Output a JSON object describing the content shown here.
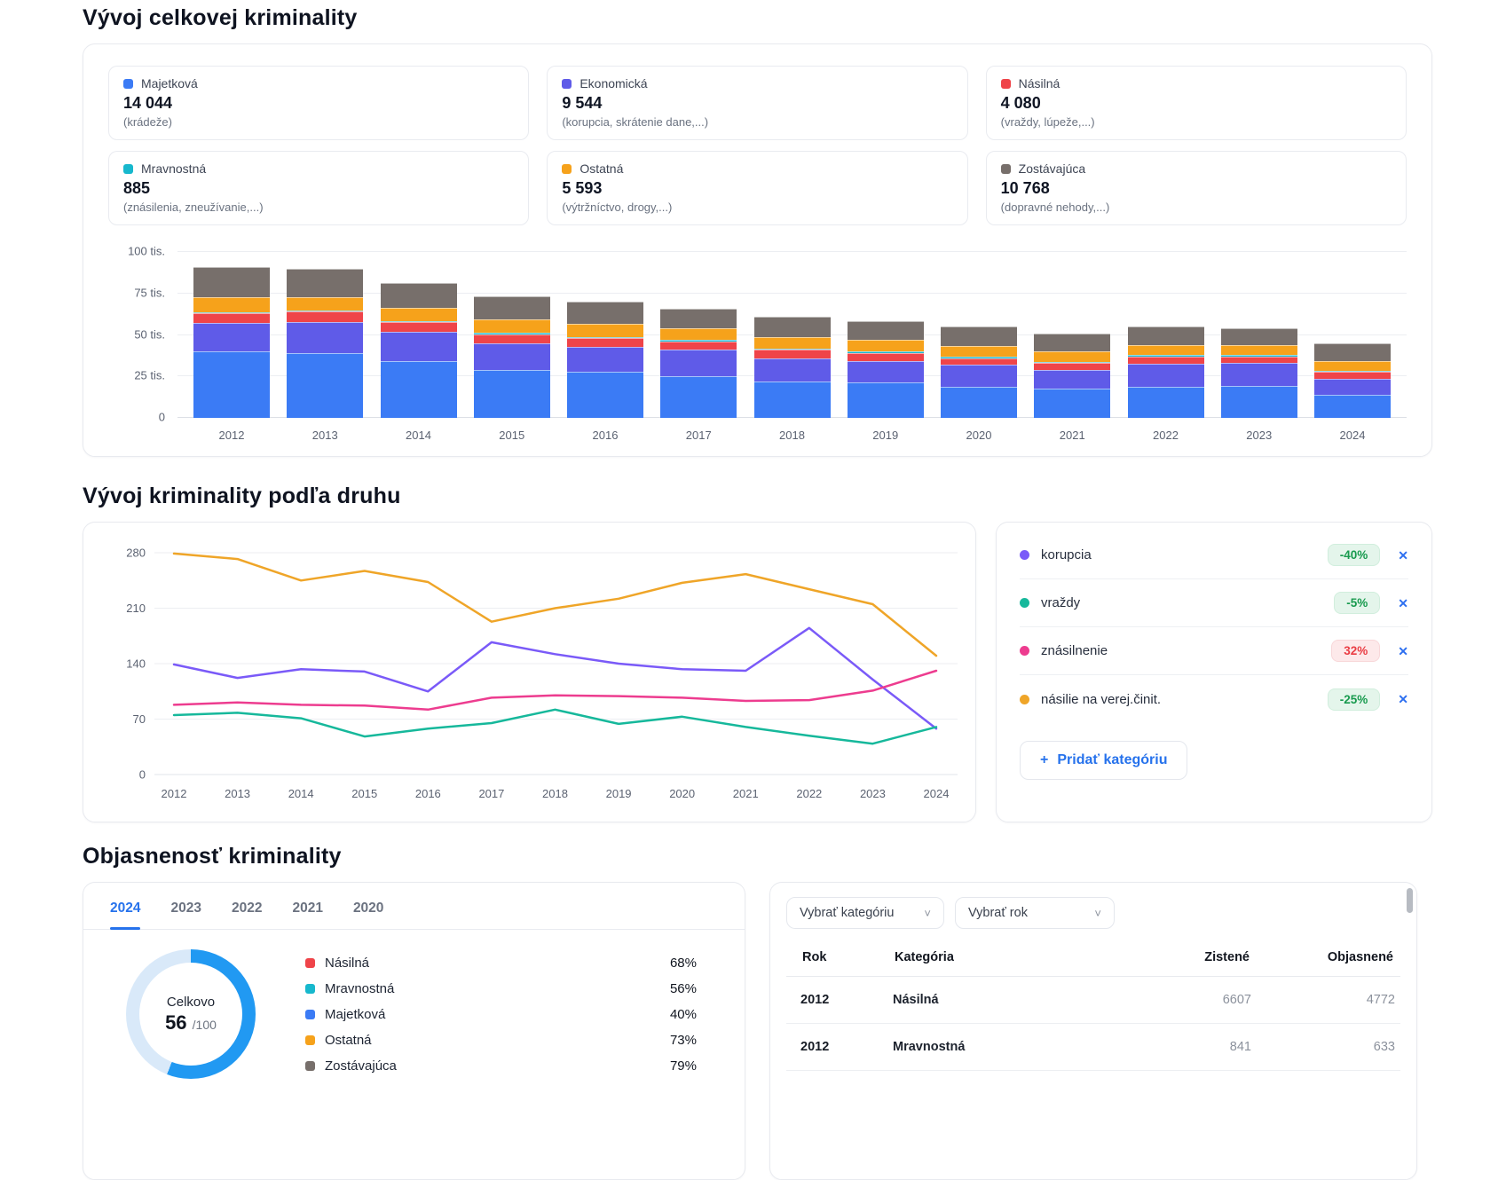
{
  "sections": {
    "overview": {
      "title": "Vývoj celkovej kriminality",
      "stats": [
        {
          "label": "Majetková",
          "value": "14 044",
          "sub": "(krádeže)",
          "color": "#3b7bf5"
        },
        {
          "label": "Ekonomická",
          "value": "9 544",
          "sub": "(korupcia, skrátenie dane,...)",
          "color": "#5f5be8"
        },
        {
          "label": "Násilná",
          "value": "4 080",
          "sub": "(vraždy, lúpeže,...)",
          "color": "#ef4449"
        },
        {
          "label": "Mravnostná",
          "value": "885",
          "sub": "(znásilenia, zneužívanie,...)",
          "color": "#17b8cd"
        },
        {
          "label": "Ostatná",
          "value": "5 593",
          "sub": "(výtržníctvo, drogy,...)",
          "color": "#f6a21b"
        },
        {
          "label": "Zostávajúca",
          "value": "10 768",
          "sub": "(dopravné nehody,...)",
          "color": "#776f6b"
        }
      ],
      "chart_data": {
        "type": "bar",
        "stacked": true,
        "unit": "tis.",
        "categories": [
          "2012",
          "2013",
          "2014",
          "2015",
          "2016",
          "2017",
          "2018",
          "2019",
          "2020",
          "2021",
          "2022",
          "2023",
          "2024"
        ],
        "ylim": [
          0,
          100
        ],
        "yticks": [
          {
            "v": 100,
            "label": "100 tis."
          },
          {
            "v": 75,
            "label": "75 tis."
          },
          {
            "v": 50,
            "label": "50 tis."
          },
          {
            "v": 25,
            "label": "25 tis."
          },
          {
            "v": 0,
            "label": "0"
          }
        ],
        "series": [
          {
            "name": "Majetková",
            "color": "#3b7bf5",
            "values": [
              40,
              39,
              34,
              29,
              28,
              25,
              22,
              21.5,
              18.5,
              17.5,
              18.5,
              19.5,
              14.0
            ]
          },
          {
            "name": "Ekonomická",
            "color": "#5f5be8",
            "values": [
              17,
              19,
              18,
              16,
              15,
              16,
              14,
              13,
              13.5,
              11.5,
              14,
              13.5,
              9.5
            ]
          },
          {
            "name": "Násilná",
            "color": "#ef4449",
            "values": [
              6,
              6,
              5.5,
              5.5,
              5,
              5,
              5,
              4.5,
              4,
              4,
              4.5,
              4,
              4.1
            ]
          },
          {
            "name": "Mravnostná",
            "color": "#17b8cd",
            "values": [
              0.9,
              0.9,
              0.9,
              0.8,
              0.8,
              0.8,
              0.9,
              0.9,
              0.9,
              0.9,
              1,
              1,
              0.9
            ]
          },
          {
            "name": "Ostatná",
            "color": "#f6a21b",
            "values": [
              9,
              8,
              8,
              8,
              8,
              7,
              7,
              7,
              6.5,
              6,
              6,
              6,
              5.6
            ]
          },
          {
            "name": "Zostávajúca",
            "color": "#776f6b",
            "values": [
              18,
              17,
              15,
              14,
              13,
              12,
              12,
              11.5,
              11.5,
              11,
              11,
              10,
              10.8
            ]
          }
        ]
      }
    },
    "by_type": {
      "title": "Vývoj kriminality podľa druhu",
      "chart_data": {
        "type": "line",
        "categories": [
          "2012",
          "2013",
          "2014",
          "2015",
          "2016",
          "2017",
          "2018",
          "2019",
          "2020",
          "2021",
          "2022",
          "2023",
          "2024"
        ],
        "ylim": [
          0,
          280
        ],
        "yticks": [
          280,
          210,
          140,
          70,
          0
        ],
        "grid": true,
        "series": [
          {
            "name": "korupcia",
            "color": "#7a5af8",
            "values": [
              139,
              122,
              133,
              130,
              105,
              167,
              152,
              140,
              133,
              131,
              185,
              120,
              58
            ]
          },
          {
            "name": "vraždy",
            "color": "#16b89b",
            "values": [
              75,
              78,
              71,
              48,
              58,
              65,
              82,
              64,
              73,
              60,
              49,
              39,
              60
            ]
          },
          {
            "name": "znásilnenie",
            "color": "#ed3c8f",
            "values": [
              88,
              91,
              88,
              87,
              82,
              97,
              100,
              99,
              97,
              93,
              94,
              106,
              131
            ]
          },
          {
            "name": "násilie na verej.činit.",
            "color": "#efa528",
            "values": [
              279,
              272,
              245,
              257,
              243,
              193,
              210,
              222,
              242,
              253,
              234,
              215,
              150
            ]
          }
        ]
      },
      "legend": [
        {
          "label": "korupcia",
          "color": "#7a5af8",
          "change": "-40%",
          "trend": "down"
        },
        {
          "label": "vraždy",
          "color": "#16b89b",
          "change": "-5%",
          "trend": "down"
        },
        {
          "label": "znásilnenie",
          "color": "#ed3c8f",
          "change": "32%",
          "trend": "up"
        },
        {
          "label": "násilie na verej.činit.",
          "color": "#efa528",
          "change": "-25%",
          "trend": "down"
        }
      ],
      "add_button_plus": "+",
      "add_button": "Pridať kategóriu",
      "close_glyph": "✕"
    },
    "clearance": {
      "title": "Objasnenosť kriminality",
      "tabs": [
        "2024",
        "2023",
        "2022",
        "2021",
        "2020"
      ],
      "active_tab": "2024",
      "donut": {
        "label": "Celkovo",
        "value": "56",
        "max": "/100",
        "pct": 56,
        "accent": "#2199f2",
        "track": "#d9e9f9"
      },
      "chart_data": {
        "type": "pie",
        "title": "Celkovo objasnenosť",
        "value": 56,
        "max": 100,
        "categories": [
          "Násilná",
          "Mravnostná",
          "Majetková",
          "Ostatná",
          "Zostávajúca"
        ],
        "values": [
          68,
          56,
          40,
          73,
          79
        ]
      },
      "categories": [
        {
          "label": "Násilná",
          "color": "#ef4449",
          "pct": "68%"
        },
        {
          "label": "Mravnostná",
          "color": "#17b8cd",
          "pct": "56%"
        },
        {
          "label": "Majetková",
          "color": "#3b7bf5",
          "pct": "40%"
        },
        {
          "label": "Ostatná",
          "color": "#f6a21b",
          "pct": "73%"
        },
        {
          "label": "Zostávajúca",
          "color": "#776f6b",
          "pct": "79%"
        }
      ],
      "filters": {
        "category_placeholder": "Vybrať kategóriu",
        "year_placeholder": "Vybrať rok",
        "chevron": "˅"
      },
      "table": {
        "headers": {
          "rok": "Rok",
          "kategoria": "Kategória",
          "zistene": "Zistené",
          "objasnene": "Objasnené"
        },
        "rows": [
          {
            "rok": "2012",
            "kategoria": "Násilná",
            "zistene": "6607",
            "objasnene": "4772"
          },
          {
            "rok": "2012",
            "kategoria": "Mravnostná",
            "zistene": "841",
            "objasnene": "633"
          }
        ]
      }
    }
  }
}
